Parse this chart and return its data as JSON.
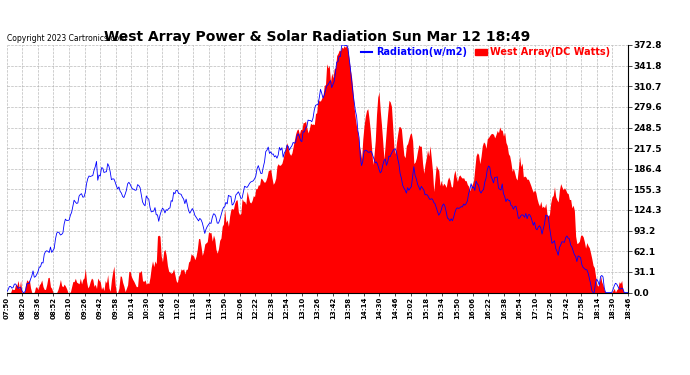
{
  "title": "West Array Power & Solar Radiation Sun Mar 12 18:49",
  "copyright": "Copyright 2023 Cartronics.com",
  "legend_radiation": "Radiation(w/m2)",
  "legend_west_array": "West Array(DC Watts)",
  "radiation_color": "blue",
  "west_array_color": "red",
  "background_color": "#ffffff",
  "grid_color": "#aaaaaa",
  "yticks": [
    0.0,
    31.1,
    62.1,
    93.2,
    124.3,
    155.3,
    186.4,
    217.5,
    248.5,
    279.6,
    310.7,
    341.8,
    372.8
  ],
  "ymax": 372.8,
  "ymin": 0.0,
  "x_labels": [
    "07:50",
    "08:20",
    "08:36",
    "08:52",
    "09:10",
    "09:26",
    "09:42",
    "09:58",
    "10:14",
    "10:30",
    "10:46",
    "11:02",
    "11:18",
    "11:34",
    "11:50",
    "12:06",
    "12:22",
    "12:38",
    "12:54",
    "13:10",
    "13:26",
    "13:42",
    "13:58",
    "14:14",
    "14:30",
    "14:46",
    "15:02",
    "15:18",
    "15:34",
    "15:50",
    "16:06",
    "16:22",
    "16:38",
    "16:54",
    "17:10",
    "17:26",
    "17:42",
    "17:58",
    "18:14",
    "18:30",
    "18:46"
  ]
}
